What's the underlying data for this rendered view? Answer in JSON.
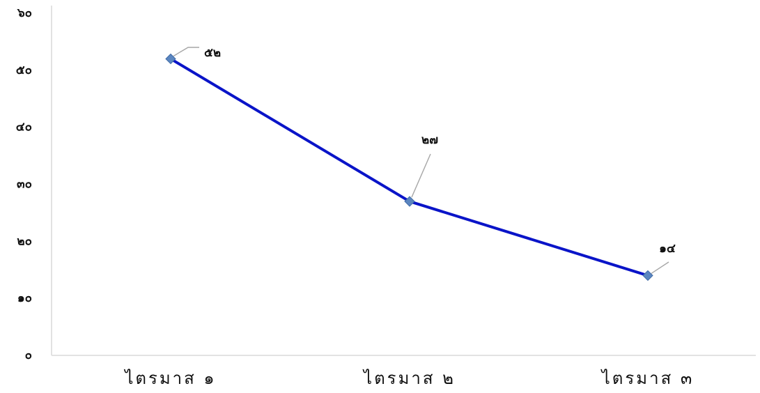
{
  "chart_data": {
    "type": "line",
    "categories": [
      "ไตรมาส ๑",
      "ไตรมาส ๒",
      "ไตรมาส ๓"
    ],
    "series": [
      {
        "values": [
          52,
          27,
          14
        ],
        "data_labels": [
          "๕๒",
          "๒๗",
          "๑๔"
        ]
      }
    ],
    "y_ticks": [
      0,
      10,
      20,
      30,
      40,
      50,
      60
    ],
    "y_tick_labels": [
      "๐",
      "๑๐",
      "๒๐",
      "๓๐",
      "๔๐",
      "๕๐",
      "๖๐"
    ],
    "ylim": [
      0,
      60
    ],
    "grid": false,
    "title": "",
    "xlabel": "",
    "ylabel": "",
    "colors": {
      "line": "#0a14c8",
      "marker": "#5b86c0",
      "marker_edge": "#3f6aa6",
      "axis": "#d9d9d9",
      "leader": "#a6a6a6"
    }
  }
}
